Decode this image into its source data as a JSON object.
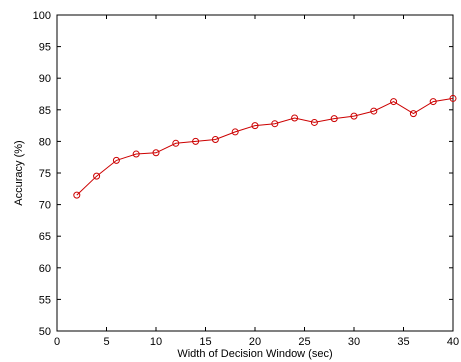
{
  "chart_data": {
    "type": "line",
    "title": "",
    "xlabel": "Width of Decision Window (sec)",
    "ylabel": "Accuracy (%)",
    "xlim": [
      0,
      40
    ],
    "ylim": [
      50,
      100
    ],
    "xticks": [
      0,
      5,
      10,
      15,
      20,
      25,
      30,
      35,
      40
    ],
    "yticks": [
      50,
      55,
      60,
      65,
      70,
      75,
      80,
      85,
      90,
      95,
      100
    ],
    "grid": false,
    "legend": "none",
    "series": [
      {
        "color": "#cc0000",
        "marker": "circle-open",
        "x": [
          2,
          4,
          6,
          8,
          10,
          12,
          14,
          16,
          18,
          20,
          22,
          24,
          26,
          28,
          30,
          32,
          34,
          36,
          38,
          40
        ],
        "y": [
          71.5,
          74.5,
          77.0,
          78.0,
          78.2,
          79.7,
          80.0,
          80.3,
          81.5,
          82.5,
          82.8,
          83.7,
          83.0,
          83.6,
          84.0,
          84.8,
          86.3,
          84.4,
          86.3,
          86.8
        ]
      }
    ]
  }
}
